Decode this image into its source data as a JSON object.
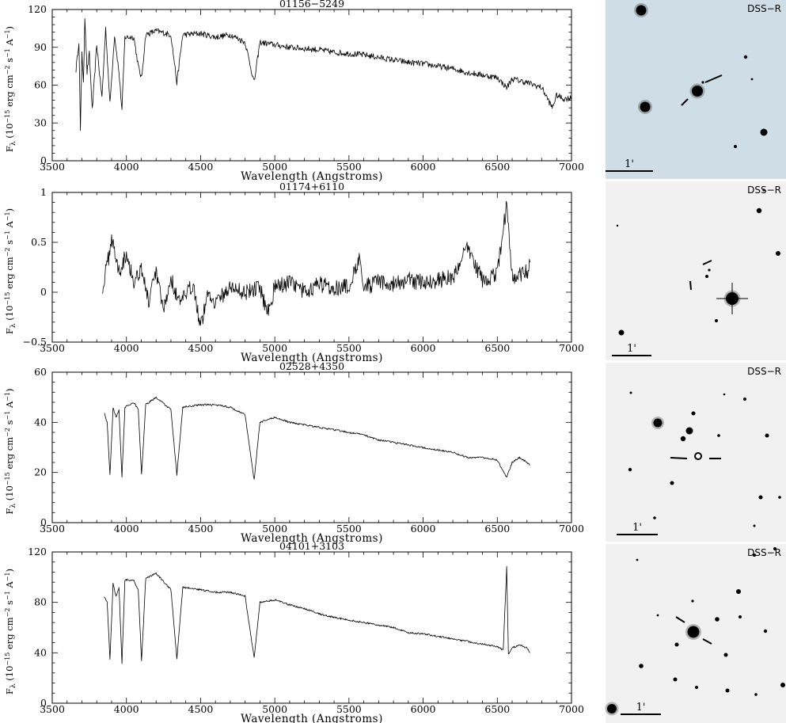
{
  "chart_data": [
    {
      "type": "line",
      "title": "01156−5249",
      "xlabel": "Wavelength (Angstroms)",
      "ylabel_parts": [
        "F",
        "λ",
        " (10",
        "−15",
        " erg cm",
        "−2",
        " s",
        "−1",
        " A",
        "−1",
        ")"
      ],
      "xlim": [
        3500,
        7000
      ],
      "ylim": [
        0,
        120
      ],
      "xticks": [
        3500,
        4000,
        4500,
        5000,
        5500,
        6000,
        6500,
        7000
      ],
      "yticks": [
        0,
        30,
        60,
        90,
        120
      ],
      "ytick_labels": [
        "0",
        "30",
        "60",
        "90",
        "120"
      ],
      "series": [
        {
          "x": [
            3660,
            3680,
            3690,
            3700,
            3710,
            3720,
            3735,
            3750,
            3770,
            3800,
            3835,
            3860,
            3889,
            3920,
            3950,
            3970,
            3990,
            4050,
            4080,
            4102,
            4130,
            4200,
            4300,
            4340,
            4380,
            4500,
            4600,
            4700,
            4800,
            4861,
            4900,
            5000,
            5100,
            5200,
            5300,
            5400,
            5500,
            5600,
            5700,
            5800,
            5900,
            6000,
            6100,
            6200,
            6300,
            6400,
            6500,
            6563,
            6600,
            6700,
            6800,
            6870,
            6900,
            6950,
            7000
          ],
          "y": [
            72,
            95,
            22,
            88,
            60,
            115,
            70,
            85,
            40,
            92,
            50,
            105,
            45,
            100,
            70,
            40,
            98,
            98,
            75,
            65,
            100,
            103,
            100,
            62,
            100,
            101,
            98,
            100,
            94,
            62,
            94,
            92,
            90,
            89,
            88,
            86,
            85,
            84,
            82,
            80,
            78,
            77,
            75,
            73,
            70,
            68,
            66,
            58,
            65,
            62,
            58,
            42,
            52,
            49,
            50
          ]
        }
      ]
    },
    {
      "type": "line",
      "title": "01174+6110",
      "xlabel": "Wavelength (Angstroms)",
      "ylabel_parts": [
        "F",
        "λ",
        " (10",
        "−15",
        " erg cm",
        "−2",
        " s",
        "−1",
        " A",
        "−1",
        ")"
      ],
      "xlim": [
        3500,
        7000
      ],
      "ylim": [
        -0.5,
        1
      ],
      "xticks": [
        3500,
        4000,
        4500,
        5000,
        5500,
        6000,
        6500,
        7000
      ],
      "yticks": [
        -0.5,
        0,
        0.5,
        1
      ],
      "ytick_labels": [
        "−0.5",
        "0",
        "0.5",
        "1"
      ],
      "series": [
        {
          "x": [
            3840,
            3880,
            3900,
            3950,
            4000,
            4050,
            4100,
            4150,
            4200,
            4250,
            4300,
            4350,
            4400,
            4450,
            4500,
            4550,
            4600,
            4700,
            4800,
            4900,
            4950,
            5000,
            5100,
            5200,
            5300,
            5400,
            5500,
            5577,
            5600,
            5700,
            5800,
            5900,
            6000,
            6100,
            6200,
            6300,
            6400,
            6500,
            6563,
            6600,
            6700,
            6720
          ],
          "y": [
            0.05,
            0.35,
            0.55,
            0.2,
            0.4,
            0.1,
            0.25,
            -0.1,
            0.2,
            -0.2,
            0.15,
            -0.1,
            -0.05,
            0.1,
            -0.35,
            0.0,
            -0.1,
            0.05,
            0.0,
            0.05,
            -0.2,
            0.05,
            0.1,
            0.0,
            0.08,
            0.05,
            0.05,
            0.38,
            0.05,
            0.1,
            0.08,
            0.12,
            0.1,
            0.12,
            0.15,
            0.45,
            0.12,
            0.18,
            0.88,
            0.15,
            0.2,
            0.3
          ]
        }
      ]
    },
    {
      "type": "line",
      "title": "02528+4350",
      "xlabel": "Wavelength (Angstroms)",
      "ylabel_parts": [
        "F",
        "λ",
        " (10",
        "−15",
        " erg cm",
        "−2",
        " s",
        "−1",
        " A",
        "−1",
        ")"
      ],
      "xlim": [
        3500,
        7000
      ],
      "ylim": [
        0,
        60
      ],
      "xticks": [
        3500,
        4000,
        4500,
        5000,
        5500,
        6000,
        6500,
        7000
      ],
      "yticks": [
        0,
        20,
        40,
        60
      ],
      "ytick_labels": [
        "0",
        "20",
        "40",
        "60"
      ],
      "series": [
        {
          "x": [
            3850,
            3870,
            3889,
            3910,
            3930,
            3950,
            3970,
            3990,
            4050,
            4080,
            4102,
            4130,
            4200,
            4300,
            4340,
            4380,
            4500,
            4600,
            4700,
            4800,
            4861,
            4900,
            5000,
            5100,
            5200,
            5300,
            5400,
            5500,
            5600,
            5700,
            5800,
            5900,
            6000,
            6100,
            6200,
            6300,
            6400,
            6500,
            6563,
            6600,
            6650,
            6700,
            6720
          ],
          "y": [
            44,
            40,
            19,
            46,
            42,
            45,
            18,
            46,
            48,
            45,
            19,
            47,
            50,
            45,
            19,
            46,
            47,
            47,
            46,
            43,
            17,
            40,
            42,
            40,
            39,
            38,
            37,
            36,
            35,
            33,
            32,
            31,
            30,
            29,
            28,
            26,
            26,
            25,
            18,
            24,
            26,
            24,
            23
          ]
        }
      ]
    },
    {
      "type": "line",
      "title": "04101+3103",
      "xlabel": "Wavelength (Angstroms)",
      "ylabel_parts": [
        "F",
        "λ",
        " (10",
        "−15",
        " erg cm",
        "−2",
        " s",
        "−1",
        " A",
        "−1",
        ")"
      ],
      "xlim": [
        3500,
        7000
      ],
      "ylim": [
        0,
        120
      ],
      "xticks": [
        3500,
        4000,
        4500,
        5000,
        5500,
        6000,
        6500,
        7000
      ],
      "yticks": [
        0,
        40,
        80,
        120
      ],
      "ytick_labels": [
        "0",
        "40",
        "80",
        "120"
      ],
      "series": [
        {
          "x": [
            3850,
            3870,
            3889,
            3910,
            3930,
            3950,
            3970,
            3990,
            4050,
            4080,
            4102,
            4130,
            4200,
            4300,
            4340,
            4380,
            4500,
            4600,
            4700,
            4800,
            4861,
            4900,
            5000,
            5100,
            5200,
            5300,
            5400,
            5500,
            5600,
            5700,
            5800,
            5900,
            6000,
            6100,
            6200,
            6300,
            6400,
            6500,
            6540,
            6563,
            6575,
            6600,
            6650,
            6700,
            6720
          ],
          "y": [
            85,
            80,
            35,
            95,
            85,
            92,
            32,
            98,
            97,
            90,
            33,
            99,
            103,
            90,
            35,
            92,
            90,
            88,
            88,
            85,
            36,
            80,
            82,
            78,
            75,
            71,
            68,
            66,
            64,
            62,
            60,
            56,
            55,
            53,
            51,
            49,
            47,
            45,
            42,
            108,
            39,
            44,
            46,
            44,
            40
          ]
        }
      ]
    }
  ],
  "images": [
    {
      "survey_label": "DSS−R",
      "scale_label": "1'",
      "tint": "#cfdde6"
    },
    {
      "survey_label": "DSS−R",
      "scale_label": "1'",
      "tint": "#f1f1f1"
    },
    {
      "survey_label": "DSS−R",
      "scale_label": "1'",
      "tint": "#f1f1f1"
    },
    {
      "survey_label": "DSS−R",
      "scale_label": "1'",
      "tint": "#f1f1f1"
    }
  ]
}
